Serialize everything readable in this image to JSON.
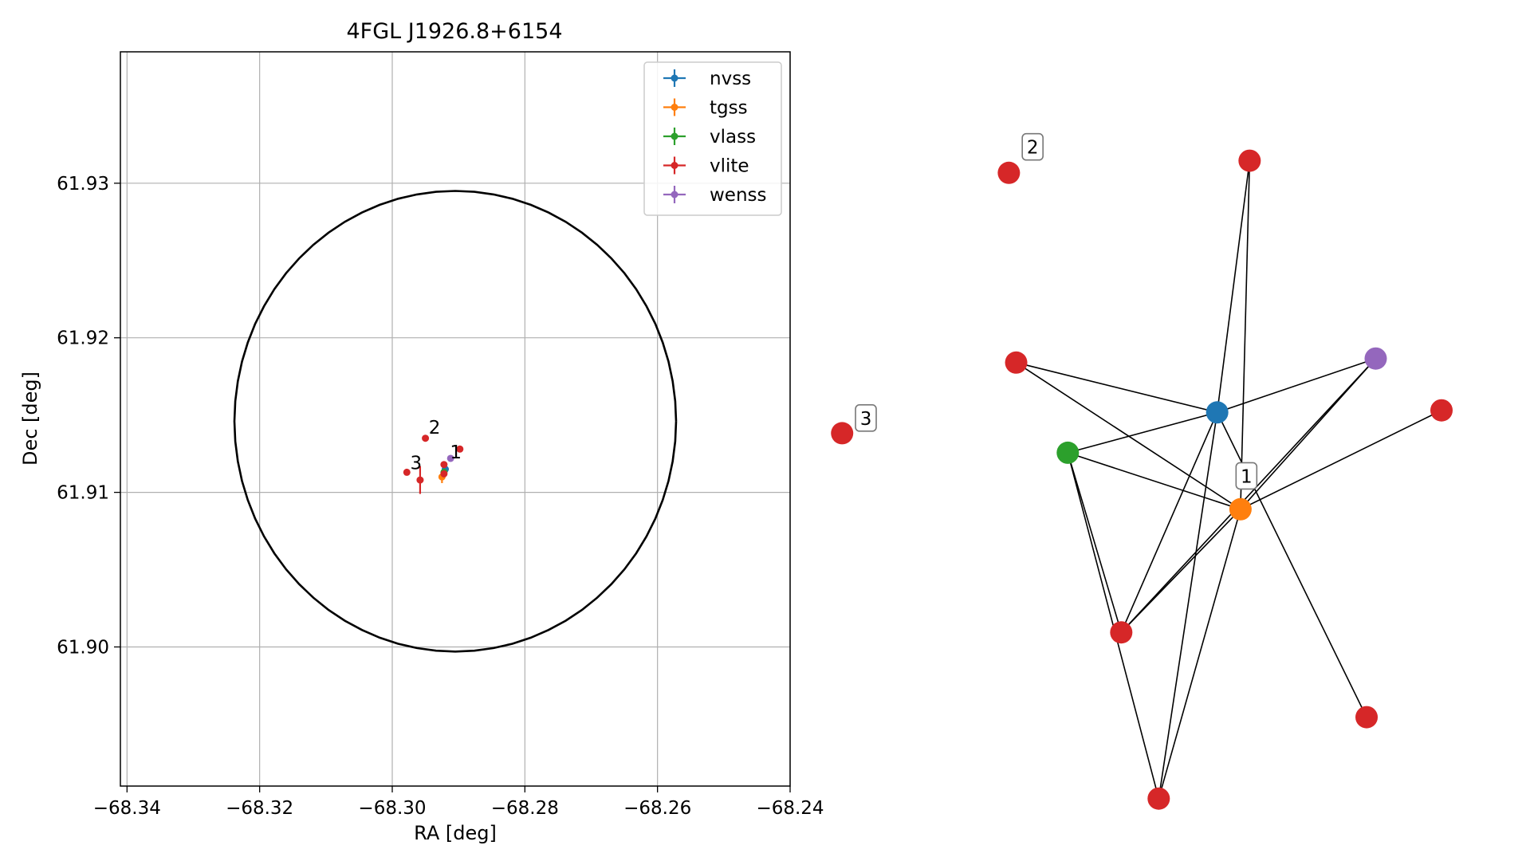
{
  "chart_data": [
    {
      "type": "scatter",
      "title": "4FGL J1926.8+6154",
      "xlabel": "RA [deg]",
      "ylabel": "Dec [deg]",
      "xlim": [
        -68.341,
        -68.24
      ],
      "ylim": [
        61.891,
        61.9385
      ],
      "xticks": [
        -68.34,
        -68.32,
        -68.3,
        -68.28,
        -68.26,
        -68.24
      ],
      "xtick_labels": [
        "−68.34",
        "−68.32",
        "−68.30",
        "−68.28",
        "−68.26",
        "−68.24"
      ],
      "yticks": [
        61.9,
        61.91,
        61.92,
        61.93
      ],
      "ytick_labels": [
        "61.90",
        "61.91",
        "61.92",
        "61.93"
      ],
      "grid": true,
      "legend_position": "top-right",
      "error_ellipse": {
        "center": [
          -68.2905,
          61.9146
        ],
        "semi_ra": 0.0333,
        "semi_dec": 0.0149
      },
      "series": [
        {
          "name": "nvss",
          "color": "#1f77b4",
          "points": [
            {
              "x": -68.292,
              "y": 61.9115,
              "xerr": 0.0003,
              "yerr": 0.0003
            }
          ]
        },
        {
          "name": "tgss",
          "color": "#ff7f0e",
          "points": [
            {
              "x": -68.2925,
              "y": 61.911,
              "xerr": 0.0003,
              "yerr": 0.0004
            }
          ]
        },
        {
          "name": "vlass",
          "color": "#2ca02c",
          "points": [
            {
              "x": -68.2922,
              "y": 61.9113,
              "xerr": 0.0001,
              "yerr": 0.0001
            }
          ]
        },
        {
          "name": "vlite",
          "color": "#d62728",
          "points": [
            {
              "x": -68.295,
              "y": 61.9135,
              "xerr": 0.0001,
              "yerr": 0.0001
            },
            {
              "x": -68.2898,
              "y": 61.9128,
              "xerr": 0.0001,
              "yerr": 0.0001
            },
            {
              "x": -68.2978,
              "y": 61.9113,
              "xerr": 0.0001,
              "yerr": 0.0001
            },
            {
              "x": -68.2958,
              "y": 61.9108,
              "xerr": 0.0005,
              "yerr": 0.0009
            },
            {
              "x": -68.2922,
              "y": 61.9118,
              "xerr": 0.0001,
              "yerr": 0.0001
            },
            {
              "x": -68.2922,
              "y": 61.9112,
              "xerr": 0.0001,
              "yerr": 0.0001
            }
          ]
        },
        {
          "name": "wenss",
          "color": "#9467bd",
          "points": [
            {
              "x": -68.2912,
              "y": 61.9122,
              "xerr": 0.0002,
              "yerr": 0.0002
            }
          ]
        }
      ],
      "annotations": [
        {
          "text": "1",
          "x": -68.2913,
          "y": 61.9122
        },
        {
          "text": "2",
          "x": -68.2945,
          "y": 61.9138
        },
        {
          "text": "3",
          "x": -68.2973,
          "y": 61.9115
        }
      ]
    },
    {
      "type": "network",
      "nodes": [
        {
          "id": "n0",
          "survey": "nvss",
          "color": "#1f77b4",
          "pos": [
            0.509,
            0.585
          ]
        },
        {
          "id": "n1",
          "survey": "tgss",
          "color": "#ff7f0e",
          "pos": [
            0.56,
            0.441
          ]
        },
        {
          "id": "n2",
          "survey": "vlass",
          "color": "#2ca02c",
          "pos": [
            0.182,
            0.525
          ]
        },
        {
          "id": "n3",
          "survey": "wenss",
          "color": "#9467bd",
          "pos": [
            0.856,
            0.665
          ]
        },
        {
          "id": "n4",
          "survey": "vlite",
          "color": "#d62728",
          "pos": [
            0.58,
            0.959
          ]
        },
        {
          "id": "n5",
          "survey": "vlite",
          "color": "#d62728",
          "pos": [
            0.069,
            0.659
          ]
        },
        {
          "id": "n6",
          "survey": "vlite",
          "color": "#d62728",
          "pos": [
            1.0,
            0.588
          ]
        },
        {
          "id": "n7",
          "survey": "vlite",
          "color": "#d62728",
          "pos": [
            0.299,
            0.258
          ]
        },
        {
          "id": "n8",
          "survey": "vlite",
          "color": "#d62728",
          "pos": [
            0.836,
            0.132
          ]
        },
        {
          "id": "n9",
          "survey": "vlite",
          "color": "#d62728",
          "pos": [
            0.381,
            0.011
          ]
        },
        {
          "id": "n10",
          "survey": "vlite",
          "color": "#d62728",
          "pos": [
            0.053,
            0.941
          ]
        },
        {
          "id": "n11",
          "survey": "vlite",
          "color": "#d62728",
          "pos": [
            -0.312,
            0.554
          ]
        }
      ],
      "edges": [
        [
          "n5",
          "n0"
        ],
        [
          "n5",
          "n1"
        ],
        [
          "n2",
          "n0"
        ],
        [
          "n2",
          "n1"
        ],
        [
          "n2",
          "n7"
        ],
        [
          "n2",
          "n9"
        ],
        [
          "n3",
          "n0"
        ],
        [
          "n3",
          "n1"
        ],
        [
          "n3",
          "n7"
        ],
        [
          "n6",
          "n1"
        ],
        [
          "n4",
          "n0"
        ],
        [
          "n4",
          "n1"
        ],
        [
          "n0",
          "n7"
        ],
        [
          "n0",
          "n9"
        ],
        [
          "n0",
          "n8"
        ],
        [
          "n1",
          "n7"
        ],
        [
          "n1",
          "n9"
        ]
      ],
      "labels": [
        {
          "text": "1",
          "pos": [
            0.573,
            0.49
          ]
        },
        {
          "text": "2",
          "pos": [
            0.105,
            0.979
          ]
        },
        {
          "text": "3",
          "pos": [
            -0.26,
            0.576
          ]
        }
      ]
    }
  ]
}
